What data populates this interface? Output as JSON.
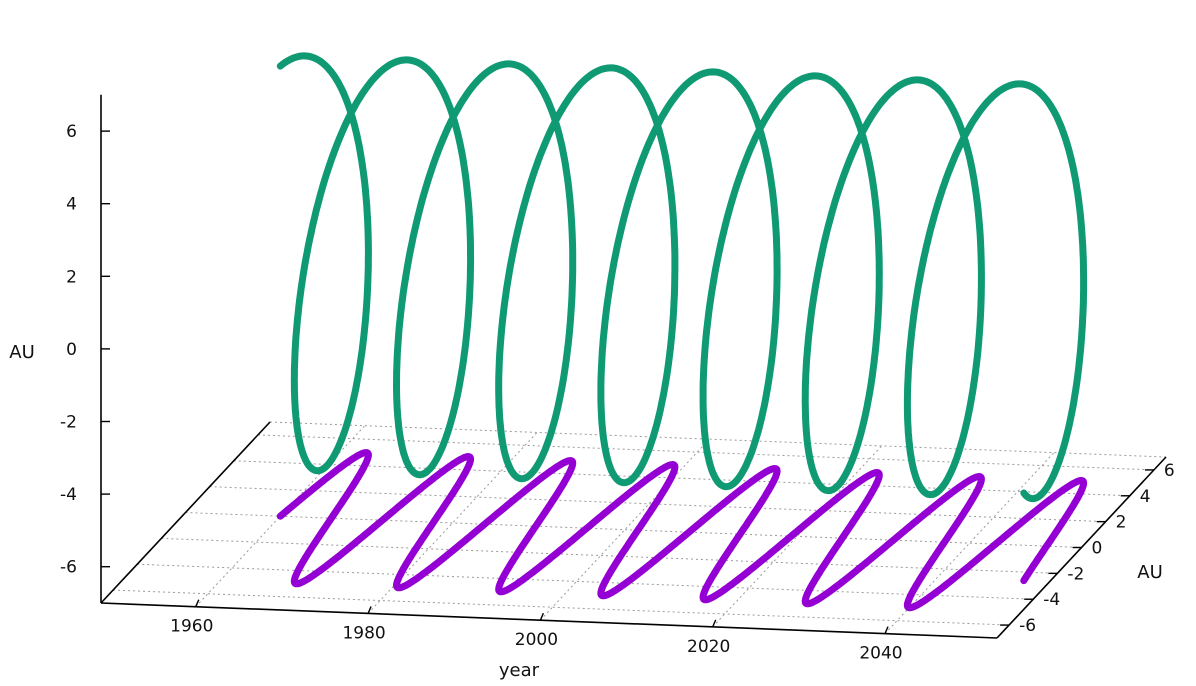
{
  "chart_data": {
    "type": "line",
    "projection": "3d",
    "title": "",
    "xlabel": "year",
    "ylabel": "AU",
    "zlabel": "AU",
    "xlim": [
      1949,
      2053
    ],
    "ylim": [
      -7,
      7
    ],
    "zlim": [
      -7,
      7
    ],
    "x_ticks": [
      1960,
      1980,
      2000,
      2020,
      2040
    ],
    "y_ticks": [
      -6,
      -4,
      -2,
      0,
      2,
      4,
      6
    ],
    "z_ticks": [
      -6,
      -4,
      -2,
      0,
      2,
      4,
      6
    ],
    "grid": true,
    "colors": {
      "helix": "#0f9a73",
      "floor_projection": "#9400d3"
    },
    "series": [
      {
        "description": "3D trajectory: heliocentric position vs time",
        "x_start": 1960,
        "x_end": 2050,
        "period_years": 11.86,
        "y_amplitude": 5.0,
        "z_amplitude": 5.4,
        "phase_deg": 0
      },
      {
        "description": "Projection of the trajectory onto the floor plane (z = -7)",
        "x_start": 1960,
        "x_end": 2050,
        "period_years": 11.86,
        "y_amplitude": 5.0,
        "floor_z": -7
      }
    ]
  }
}
